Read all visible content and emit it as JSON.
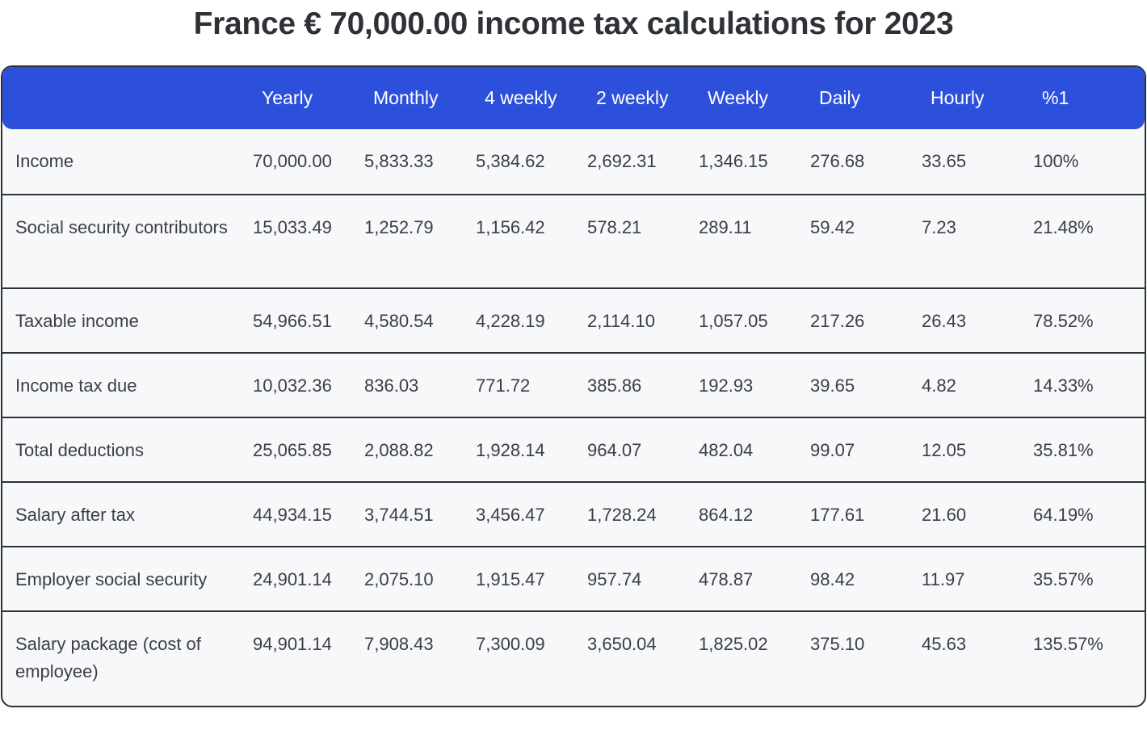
{
  "title": "France € 70,000.00 income tax calculations for 2023",
  "columns": [
    "Yearly",
    "Monthly",
    "4 weekly",
    "2 weekly",
    "Weekly",
    "Daily",
    "Hourly",
    "%1"
  ],
  "colors": {
    "header": "#2d50dc",
    "body": "#f6f8fa",
    "border": "#2f3236"
  },
  "rows": [
    {
      "label": "Income",
      "values": [
        "70,000.00",
        "5,833.33",
        "5,384.62",
        "2,692.31",
        "1,346.15",
        "276.68",
        "33.65",
        "100%"
      ]
    },
    {
      "label": "Social security contributors",
      "values": [
        "15,033.49",
        "1,252.79",
        "1,156.42",
        "578.21",
        "289.11",
        "59.42",
        "7.23",
        "21.48%"
      ]
    },
    {
      "label": "Taxable income",
      "values": [
        "54,966.51",
        "4,580.54",
        "4,228.19",
        "2,114.10",
        "1,057.05",
        "217.26",
        "26.43",
        "78.52%"
      ]
    },
    {
      "label": "Income tax due",
      "values": [
        "10,032.36",
        "836.03",
        "771.72",
        "385.86",
        "192.93",
        "39.65",
        "4.82",
        "14.33%"
      ]
    },
    {
      "label": "Total deductions",
      "values": [
        "25,065.85",
        "2,088.82",
        "1,928.14",
        "964.07",
        "482.04",
        "99.07",
        "12.05",
        "35.81%"
      ]
    },
    {
      "label": "Salary after tax",
      "values": [
        "44,934.15",
        "3,744.51",
        "3,456.47",
        "1,728.24",
        "864.12",
        "177.61",
        "21.60",
        "64.19%"
      ]
    },
    {
      "label": "Employer social security",
      "values": [
        "24,901.14",
        "2,075.10",
        "1,915.47",
        "957.74",
        "478.87",
        "98.42",
        "11.97",
        "35.57%"
      ]
    },
    {
      "label": "Salary package (cost of employee)",
      "values": [
        "94,901.14",
        "7,908.43",
        "7,300.09",
        "3,650.04",
        "1,825.02",
        "375.10",
        "45.63",
        "135.57%"
      ]
    }
  ]
}
